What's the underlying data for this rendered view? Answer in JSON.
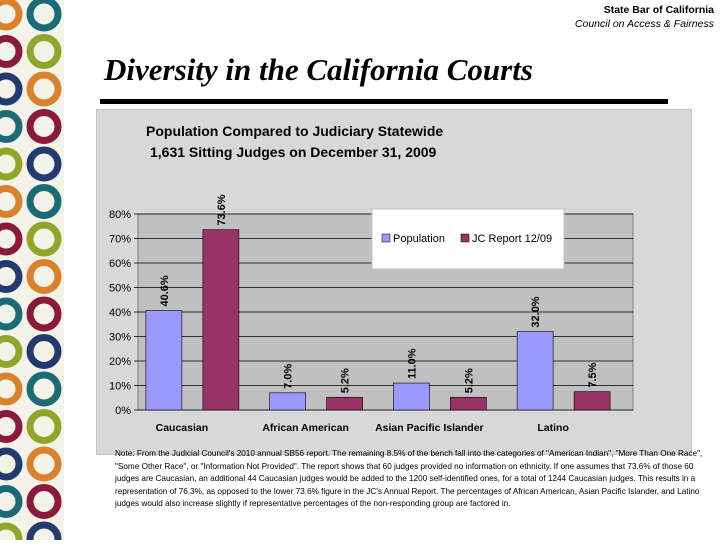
{
  "header": {
    "org": "State Bar of California",
    "council": "Council  on Access & Fairness"
  },
  "slide_title": "Diversity in the California Courts",
  "colors": {
    "population": "#9999ff",
    "jc_report": "#993366",
    "plot_bg": "#c0c0c0",
    "panel_bg": "#d8d8d8",
    "circle_teal": "#1a6b73",
    "circle_olive": "#8fa62a",
    "circle_orange": "#d9822b",
    "circle_maroon": "#8b1a3a",
    "circle_navy": "#233a6e"
  },
  "chart_data": {
    "type": "bar",
    "title": "Population Compared to Judiciary Statewide",
    "subtitle": "1,631 Sitting Judges on December 31, 2009",
    "categories": [
      "Caucasian",
      "African American",
      "Asian Pacific Islander",
      "Latino"
    ],
    "series": [
      {
        "name": "Population",
        "values": [
          40.6,
          7.0,
          11.0,
          32.0
        ]
      },
      {
        "name": "JC Report 12/09",
        "values": [
          73.6,
          5.2,
          5.2,
          7.5
        ]
      }
    ],
    "data_labels": [
      [
        "40.6%",
        "7.0%",
        "11.0%",
        "32.0%"
      ],
      [
        "73.6%",
        "5.2%",
        "5.2%",
        "7.5%"
      ]
    ],
    "ylim": [
      0,
      80
    ],
    "yticks": [
      "0%",
      "10%",
      "20%",
      "30%",
      "40%",
      "50%",
      "60%",
      "70%",
      "80%"
    ],
    "ytick_values": [
      0,
      10,
      20,
      30,
      40,
      50,
      60,
      70,
      80
    ],
    "xlabel": "",
    "ylabel": "",
    "grid": true,
    "legend_position": "top-right"
  },
  "note": "Note: From the Judicial Council's 2010 annual SB56 report.  The remaining 8.5% of the bench fall into the categories of \"American Indian\", \"More Than One Race\", \"Some Other Race\", or \"Information Not Provided\".  The report  shows that  60 judges provided no information on ethnicity.  If one assumes that 73.6% of those 60 judges are Caucasian, an additional 44 Caucasian judges would be added to the 1200 self-identified ones, for a total of 1244 Caucasian judges.  This results in a representation of 76.3%, as opposed to the lower  73.6% figure in the JC's Annual Report. The percentages of African American, Asian Pacific Islander, and Latino judges would also increase slightly if representative percentages of the non-responding group are factored in."
}
